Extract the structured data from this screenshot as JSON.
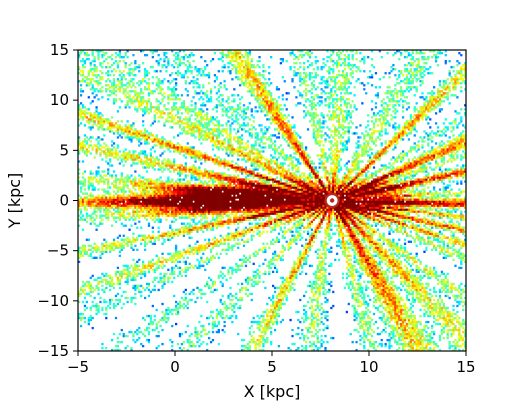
{
  "chart_data": {
    "type": "heatmap",
    "title": "",
    "xlabel": "X [kpc]",
    "ylabel": "Y [kpc]",
    "xlim": [
      -5,
      15
    ],
    "ylim": [
      -15,
      15
    ],
    "x_ticks": [
      -5,
      0,
      5,
      10,
      15
    ],
    "y_ticks": [
      -15,
      -10,
      -5,
      0,
      5,
      10,
      15
    ],
    "x_tick_labels": [
      "−5",
      "0",
      "5",
      "10",
      "15"
    ],
    "y_tick_labels": [
      "−15",
      "−10",
      "−5",
      "0",
      "5",
      "10",
      "15"
    ],
    "grid": false,
    "colormap": "jet",
    "background": "#ffffff",
    "sun_marker": {
      "x": 8.1,
      "y": 0,
      "symbol": "circled-dot",
      "color": "#b52a1c"
    },
    "density_peaks": [
      {
        "x": 1.5,
        "y": 0.2,
        "level": 0.95
      },
      {
        "x": 3.5,
        "y": 0.8,
        "level": 0.85
      },
      {
        "x": 10.5,
        "y": 1.0,
        "level": 0.8
      },
      {
        "x": 10.0,
        "y": -0.5,
        "level": 0.75
      }
    ]
  }
}
